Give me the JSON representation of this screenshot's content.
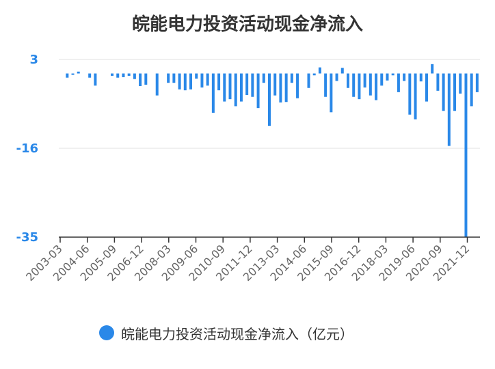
{
  "chart_data": {
    "type": "bar",
    "title": "皖能电力投资活动现金净流入",
    "xlabel": "",
    "ylabel": "",
    "ylim": [
      -35,
      3
    ],
    "yticks": [
      3,
      -16,
      -35
    ],
    "grid": true,
    "legend_position": "bottom-center",
    "bar_color": "#2a88e8",
    "x_tick_labels": [
      "2003-03",
      "2004-06",
      "2005-09",
      "2006-12",
      "2008-03",
      "2009-06",
      "2010-09",
      "2011-12",
      "2013-03",
      "2014-06",
      "2015-09",
      "2016-12",
      "2018-03",
      "2019-06",
      "2020-09",
      "2021-12"
    ],
    "series": [
      {
        "name": "皖能电力投资活动现金净流入（亿元）",
        "values": [
          0,
          -0.9,
          -0.3,
          0.4,
          0,
          -0.9,
          -2.6,
          0,
          0,
          -0.5,
          -0.9,
          -0.8,
          -0.5,
          -1.2,
          -2.7,
          -2.4,
          0,
          -4.7,
          0,
          -2.0,
          -2.0,
          -3.4,
          -3.6,
          -3.4,
          -1.1,
          -3.0,
          -2.6,
          -8.4,
          -3.6,
          -6.0,
          -5.5,
          -7.0,
          -6.0,
          -4.6,
          -5.0,
          -7.4,
          -2.0,
          -11.2,
          -4.7,
          -6.2,
          -6.1,
          -2.0,
          -5.3,
          0,
          -3.1,
          -0.4,
          1.3,
          -5.0,
          -8.3,
          -1.6,
          1.2,
          -3.1,
          -5.0,
          -5.5,
          -3.0,
          -4.7,
          -5.7,
          -2.6,
          -1.5,
          -0.4,
          -4.0,
          -1.6,
          -8.8,
          -9.8,
          -1.7,
          -6.0,
          2.0,
          -3.7,
          -8.0,
          -15.5,
          -8.0,
          -4.3,
          -35.0,
          -7.0,
          -4.0
        ]
      }
    ]
  },
  "legend": {
    "label": "皖能电力投资活动现金净流入（亿元）"
  }
}
